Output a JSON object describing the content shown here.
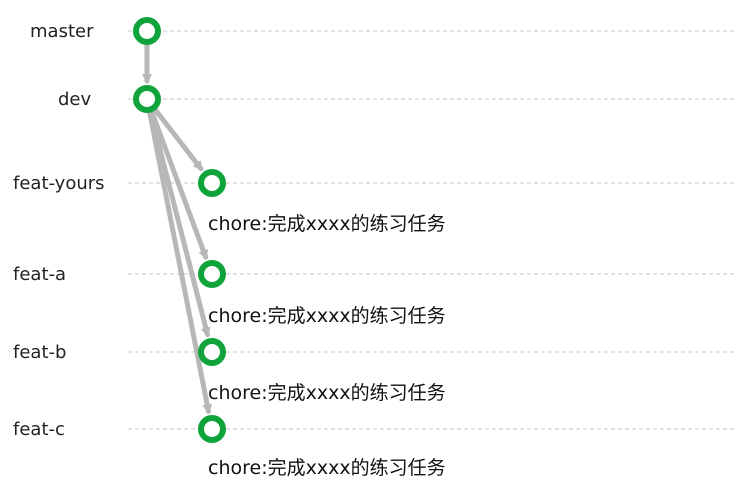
{
  "colors": {
    "node": "#0fa43a",
    "edge": "#b7b7b7",
    "lane_line": "#c4c4c4",
    "text": "#222222"
  },
  "branches": [
    {
      "id": "master",
      "label": "master",
      "commit_message": ""
    },
    {
      "id": "dev",
      "label": "dev",
      "commit_message": ""
    },
    {
      "id": "feat-yours",
      "label": "feat-yours",
      "commit_message": "chore:完成xxxx的练习任务"
    },
    {
      "id": "feat-a",
      "label": "feat-a",
      "commit_message": "chore:完成xxxx的练习任务"
    },
    {
      "id": "feat-b",
      "label": "feat-b",
      "commit_message": "chore:完成xxxx的练习任务"
    },
    {
      "id": "feat-c",
      "label": "feat-c",
      "commit_message": "chore:完成xxxx的练习任务"
    }
  ],
  "edges": [
    {
      "from": "master",
      "to": "dev"
    },
    {
      "from": "dev",
      "to": "feat-yours"
    },
    {
      "from": "dev",
      "to": "feat-a"
    },
    {
      "from": "dev",
      "to": "feat-b"
    },
    {
      "from": "dev",
      "to": "feat-c"
    }
  ]
}
